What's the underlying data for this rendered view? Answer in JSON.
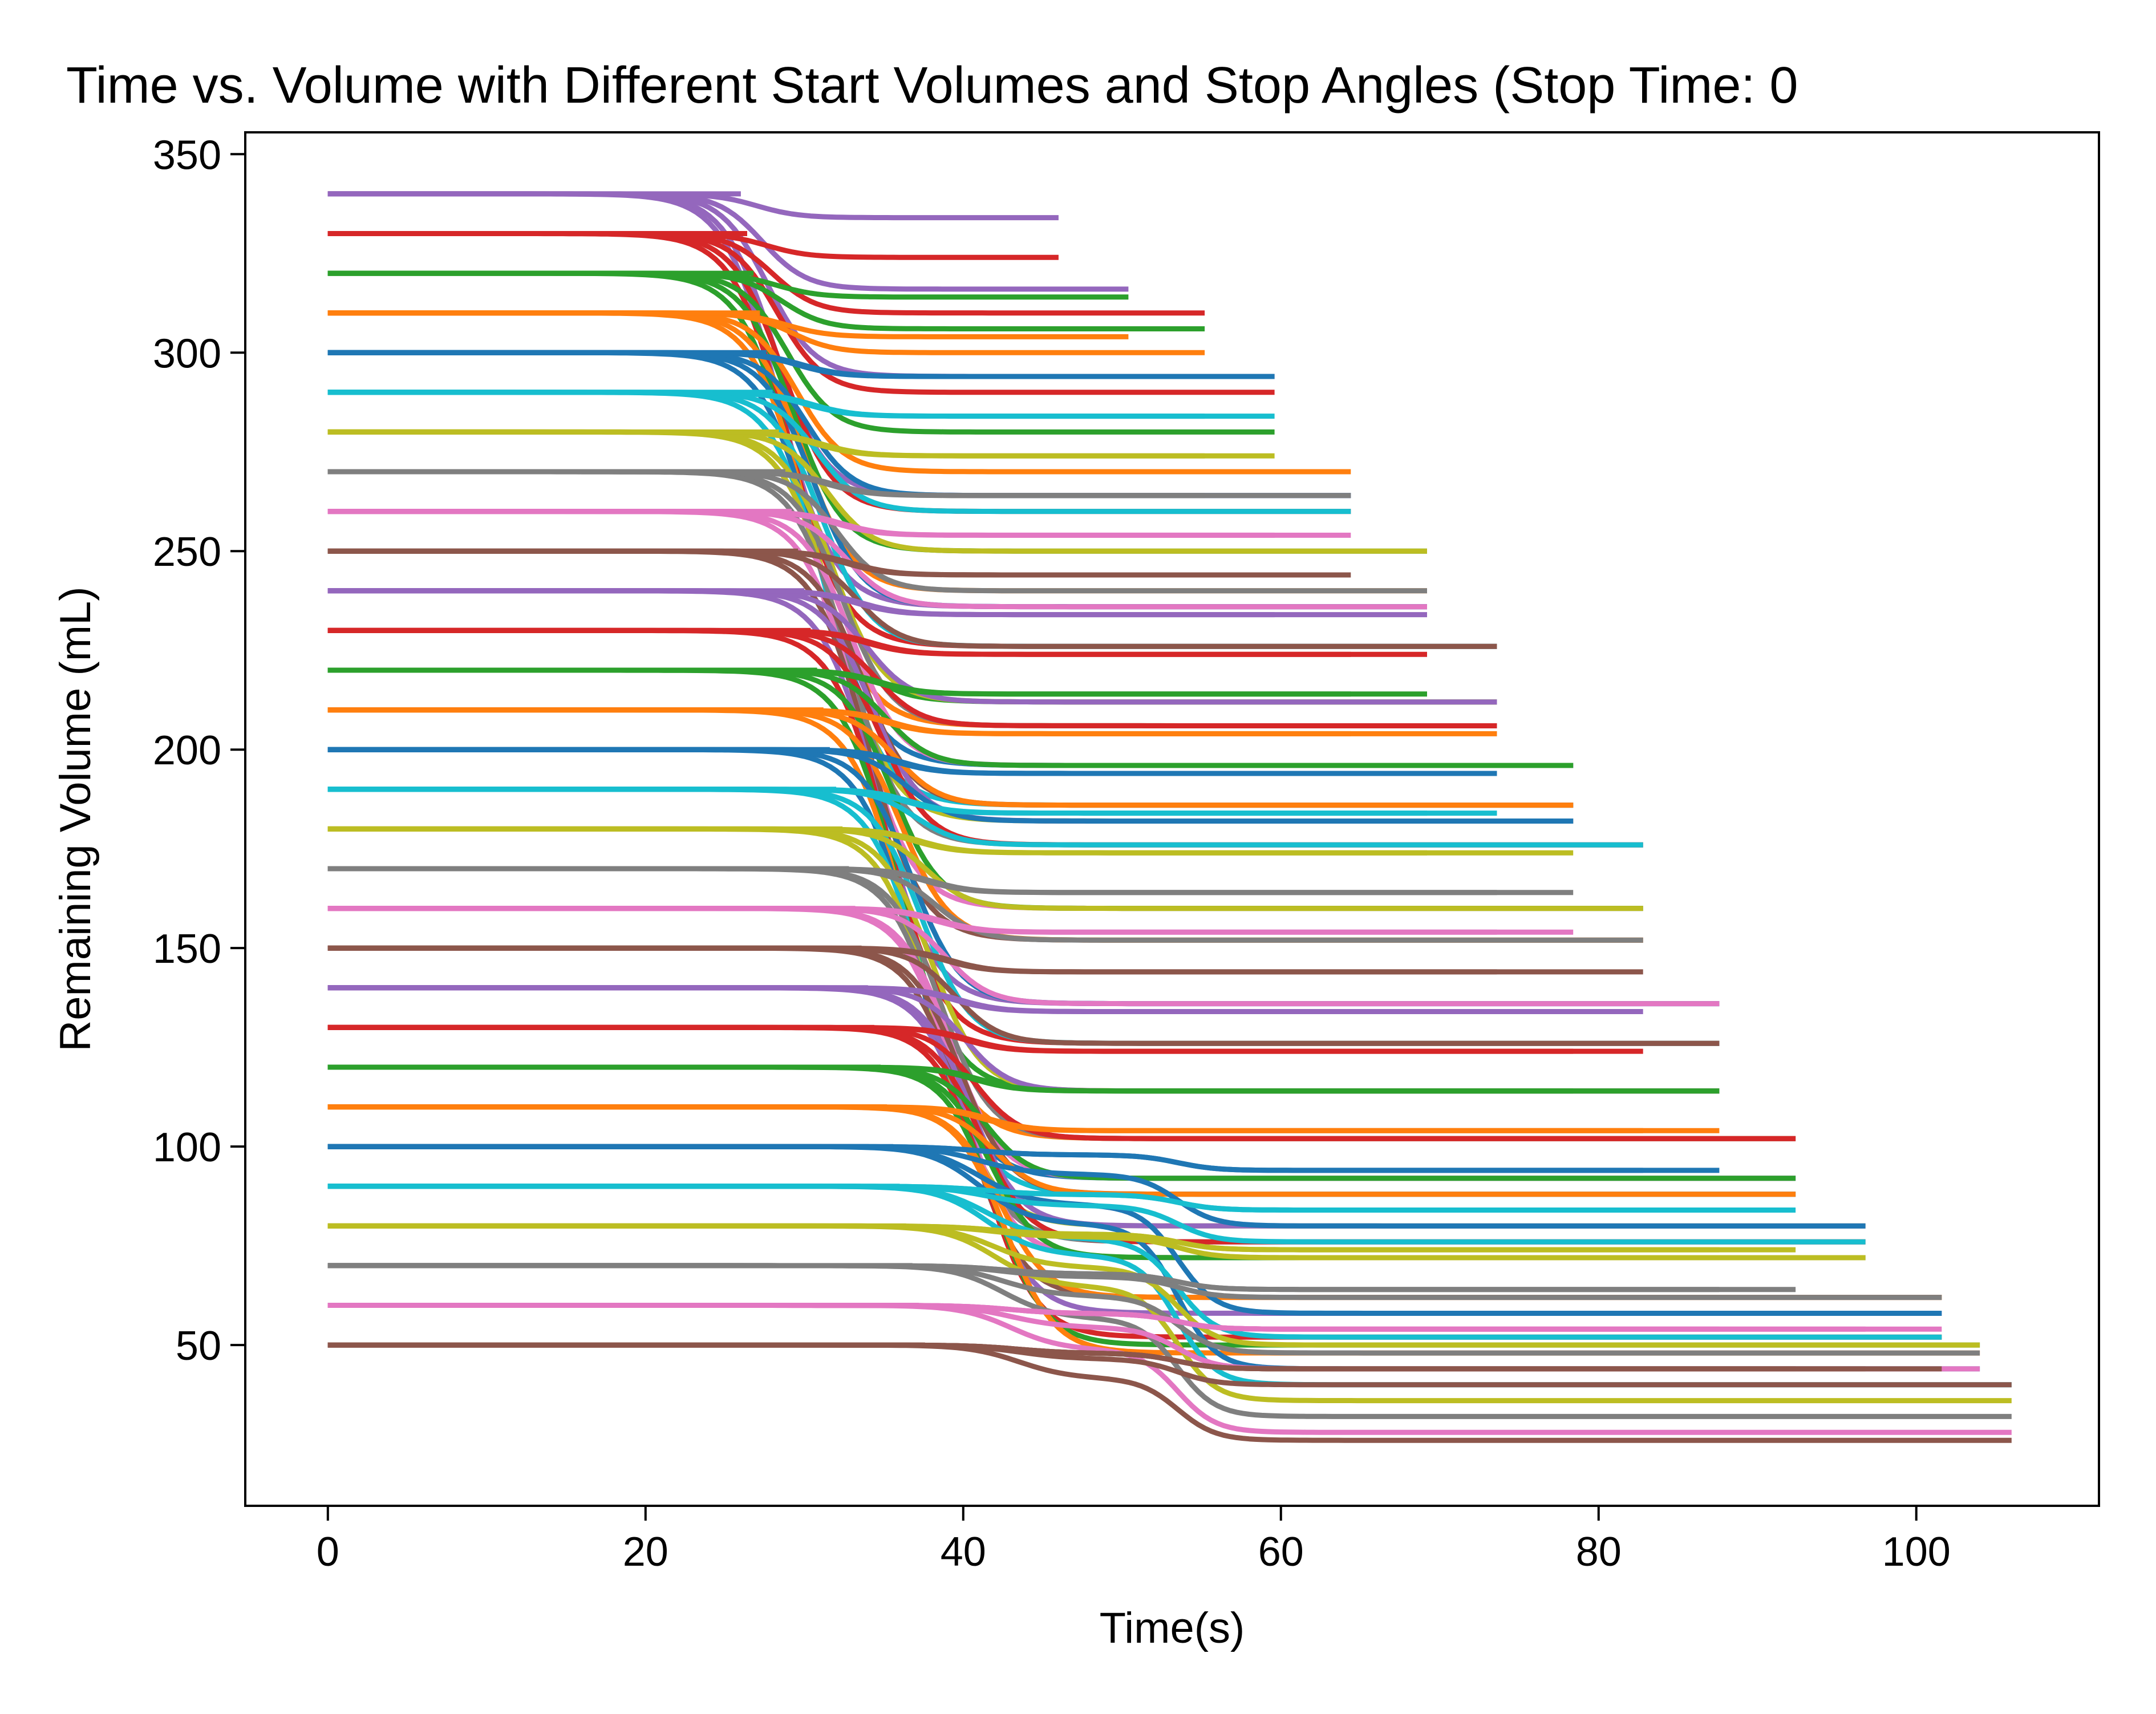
{
  "chart_data": {
    "type": "line",
    "title": "Time vs. Volume with Different Start Volumes and Stop Angles (Stop Time: 0",
    "xlabel": "Time(s)",
    "ylabel": "Remaining Volume (mL)",
    "xlim": [
      -5.2,
      111.5
    ],
    "ylim": [
      9.5,
      355.5
    ],
    "xticks": [
      0,
      20,
      40,
      60,
      80,
      100
    ],
    "yticks": [
      50,
      100,
      150,
      200,
      250,
      300,
      350
    ],
    "grid": false,
    "legend": "none",
    "start_volumes": [
      50,
      60,
      70,
      80,
      90,
      100,
      110,
      120,
      130,
      140,
      150,
      160,
      170,
      180,
      190,
      200,
      210,
      220,
      230,
      240,
      250,
      260,
      270,
      280,
      290,
      300,
      310,
      320,
      330,
      340
    ],
    "base_end_times": [
      46,
      50.6,
      55.2,
      59.9,
      64.5,
      69.2,
      73.8,
      78.4,
      83.1,
      87.7,
      92.4,
      97,
      101.6,
      104,
      106.3
    ],
    "final_plateaus": [
      340,
      336,
      330,
      326,
      320,
      316,
      310,
      306,
      300,
      294,
      290,
      280,
      270,
      264,
      260,
      250,
      240,
      236,
      226,
      212,
      206,
      196,
      186,
      182,
      176,
      160,
      152,
      136,
      126,
      114,
      102,
      92,
      88,
      80,
      76,
      72,
      62,
      58,
      52,
      50,
      48,
      44,
      40,
      36,
      32,
      28,
      26,
      24
    ],
    "colors": [
      "#1f77b4",
      "#ff7f0e",
      "#2ca02c",
      "#d62728",
      "#9467bd",
      "#8c564b",
      "#e377c2",
      "#7f7f7f",
      "#bcbd22",
      "#17becf"
    ]
  }
}
